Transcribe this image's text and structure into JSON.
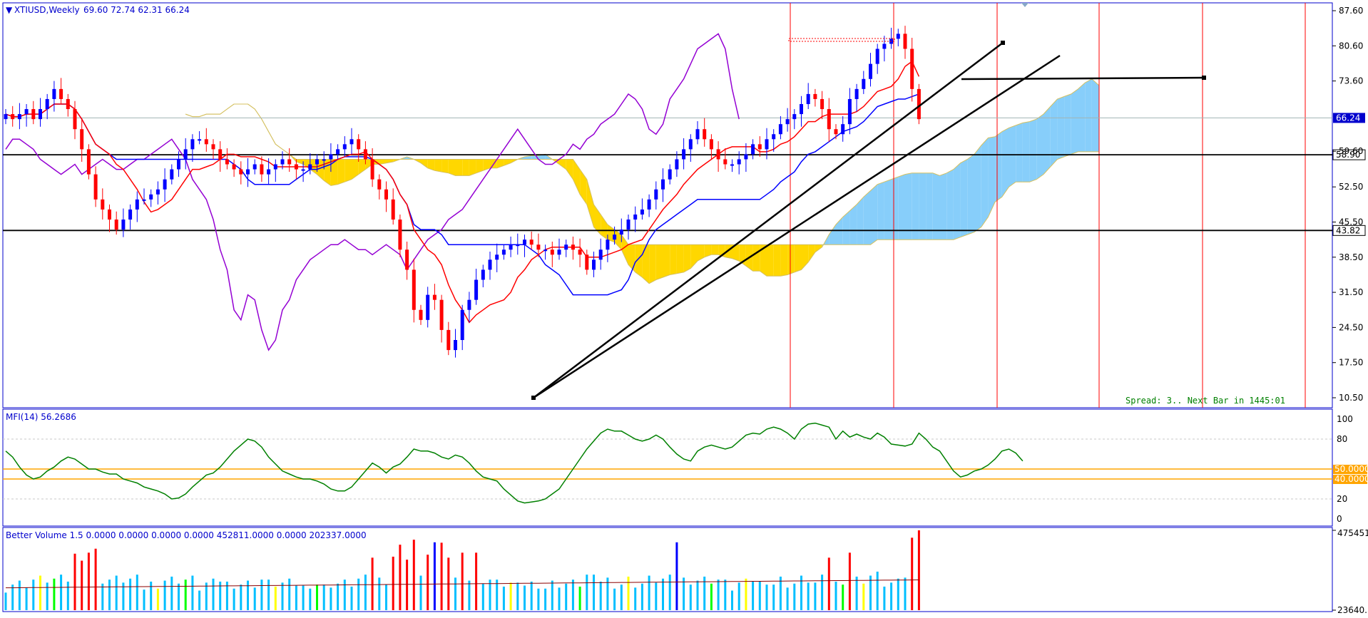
{
  "main": {
    "title_arrow": "▼",
    "symbol_label": "XTIUSD,Weekly",
    "ohlc_label": "69.60 72.74 62.31 66.24",
    "price_axis": [
      {
        "value": 87.6,
        "label": "87.60"
      },
      {
        "value": 80.6,
        "label": "80.60"
      },
      {
        "value": 73.6,
        "label": "73.60"
      },
      {
        "value": 59.6,
        "label": "59.60"
      },
      {
        "value": 52.5,
        "label": "52.50"
      },
      {
        "value": 45.5,
        "label": "45.50"
      },
      {
        "value": 38.5,
        "label": "38.50"
      },
      {
        "value": 31.5,
        "label": "31.50"
      },
      {
        "value": 24.5,
        "label": "24.50"
      },
      {
        "value": 17.5,
        "label": "17.50"
      },
      {
        "value": 10.5,
        "label": "10.50"
      }
    ],
    "current_price": {
      "value": 66.24,
      "label": "66.24"
    },
    "level_1": {
      "value": 58.9,
      "label": "58.90"
    },
    "level_2": {
      "value": 43.82,
      "label": "43.82"
    },
    "resistance": {
      "value": 73.8
    },
    "status_text": "Spread: 3.. Next Bar in 1445:01"
  },
  "mfi": {
    "label": "MFI(14) 56.2686",
    "axis": [
      {
        "value": 100,
        "label": "100"
      },
      {
        "value": 80,
        "label": "80"
      },
      {
        "value": 20,
        "label": "20"
      },
      {
        "value": 0,
        "label": "0"
      }
    ],
    "level_50": "50.0000",
    "level_40": "40.0000",
    "values": [
      68,
      62,
      52,
      44,
      40,
      42,
      48,
      52,
      58,
      62,
      60,
      55,
      50,
      50,
      47,
      45,
      45,
      40,
      38,
      36,
      32,
      30,
      28,
      25,
      20,
      21,
      25,
      32,
      38,
      44,
      46,
      52,
      60,
      68,
      74,
      80,
      78,
      72,
      62,
      55,
      48,
      45,
      42,
      40,
      40,
      38,
      35,
      30,
      28,
      28,
      32,
      40,
      48,
      56,
      52,
      46,
      52,
      55,
      62,
      70,
      68,
      68,
      66,
      62,
      60,
      64,
      62,
      56,
      48,
      42,
      40,
      38,
      30,
      24,
      18,
      16,
      17,
      18,
      20,
      25,
      30,
      40,
      50,
      60,
      70,
      78,
      86,
      90,
      88,
      88,
      84,
      80,
      78,
      80,
      84,
      80,
      72,
      65,
      60,
      58,
      68,
      72,
      74,
      72,
      70,
      72,
      78,
      84,
      86,
      85,
      90,
      92,
      90,
      86,
      80,
      90,
      95,
      96,
      94,
      92,
      80,
      88,
      82,
      85,
      82,
      80,
      86,
      82,
      75,
      74,
      73,
      75,
      86,
      80,
      72,
      68,
      58,
      48,
      42,
      44,
      48,
      50,
      54,
      60,
      68,
      70,
      66,
      58
    ]
  },
  "volume": {
    "label": "Better Volume 1.5 0.0000 0.0000 0.0000 0.0000 452811.0000 0.0000 202337.0000",
    "axis_top": "475451.",
    "axis_bottom": "23640.5"
  },
  "colors": {
    "bull": "#0000ff",
    "bear": "#ff0000",
    "kijun": "#0000ff",
    "tenkan": "#ff0000",
    "chikou": "#9400d3",
    "cloud_up": "#87cefa",
    "cloud_down": "#ffd700",
    "mfi_line": "#008000",
    "mfi_levels": "#ffa500",
    "vol_normal": "#00bfff",
    "vol_climax": "#ff0000",
    "vol_churn": "#00ff00",
    "vol_low": "#ffff00",
    "vol_high_churn": "#0000ff"
  },
  "chart_data": {
    "type": "candlestick",
    "symbol": "XTIUSD",
    "timeframe": "Weekly",
    "ylim": [
      8.5,
      88.5
    ],
    "closes": [
      67,
      66,
      67,
      68,
      66,
      68,
      70,
      72,
      70,
      68,
      64,
      60,
      55,
      50,
      48,
      46,
      44,
      46,
      48,
      50,
      50,
      51,
      52,
      54,
      56,
      58,
      60,
      62,
      62,
      61,
      60,
      58,
      57,
      56,
      55,
      56,
      57,
      55,
      56,
      57,
      58,
      57,
      56,
      56,
      57,
      58,
      58,
      59,
      60,
      61,
      62,
      60,
      58,
      54,
      52,
      50,
      46,
      40,
      36,
      28,
      26,
      31,
      30,
      24,
      20,
      22,
      28,
      30,
      34,
      36,
      38,
      39,
      40,
      41,
      41,
      42,
      41,
      40,
      40,
      39,
      40,
      41,
      40,
      39,
      36,
      38,
      40,
      42,
      43,
      44,
      46,
      47,
      48,
      50,
      52,
      54,
      56,
      58,
      60,
      62,
      64,
      62,
      60,
      58,
      57,
      57,
      58,
      59,
      61,
      60,
      62,
      63,
      65,
      66,
      67,
      69,
      71,
      70,
      68,
      64,
      63,
      65,
      70,
      72,
      74,
      77,
      80,
      81,
      82,
      83,
      80,
      72,
      66
    ]
  }
}
